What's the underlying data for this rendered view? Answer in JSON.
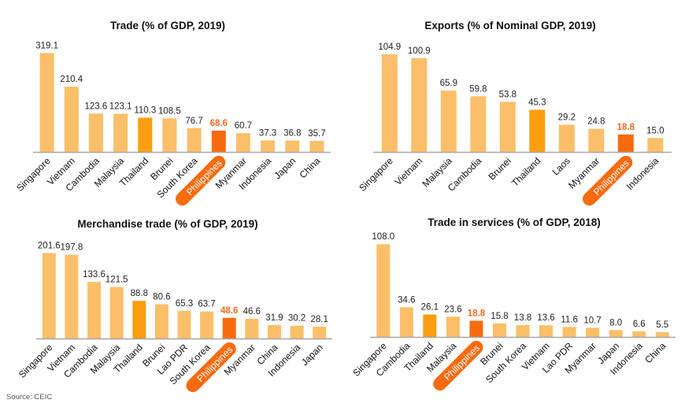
{
  "source_note": "Source: CEIC",
  "colors": {
    "default_bar": "#fbbf69",
    "thailand_bar": "#fb9e10",
    "philippines_bar": "#f86a0e",
    "philippines_label": "#f26b21",
    "axis": "#a6a6a6"
  },
  "chart_data": [
    {
      "type": "bar",
      "title": "Trade (% of GDP, 2019)",
      "xlabel": "",
      "ylabel": "",
      "categories": [
        "Singapore",
        "Vietnam",
        "Cambodia",
        "Malaysia",
        "Thailand",
        "Brunei",
        "South Korea",
        "Philippines",
        "Myanmar",
        "Indonesia",
        "Japan",
        "China"
      ],
      "values": [
        319.1,
        210.4,
        123.6,
        123.1,
        110.3,
        108.5,
        76.7,
        68.6,
        60.7,
        37.3,
        36.8,
        35.7
      ],
      "value_labels": [
        "319.1",
        "210.4",
        "123.6",
        "123.1",
        "110.3",
        "108.5",
        "76.7",
        "68.6",
        "60.7",
        "37.3",
        "36.8",
        "35.7"
      ],
      "highlight": {
        "Thailand": "thailand",
        "Philippines": "philippines"
      },
      "ylim": [
        0,
        330
      ],
      "grid": false
    },
    {
      "type": "bar",
      "title": "Exports (% of Nominal GDP, 2019)",
      "xlabel": "",
      "ylabel": "",
      "categories": [
        "Singapore",
        "Vietnam",
        "Malaysia",
        "Cambodia",
        "Brunei",
        "Thailand",
        "Laos",
        "Myanmar",
        "Philippines",
        "Indonesia"
      ],
      "values": [
        104.9,
        100.9,
        65.9,
        59.8,
        53.8,
        45.3,
        29.2,
        24.8,
        18.8,
        15.0
      ],
      "value_labels": [
        "104.9",
        "100.9",
        "65.9",
        "59.8",
        "53.8",
        "45.3",
        "29.2",
        "24.8",
        "18.8",
        "15.0"
      ],
      "highlight": {
        "Thailand": "thailand",
        "Philippines": "philippines"
      },
      "ylim": [
        0,
        110
      ],
      "grid": false
    },
    {
      "type": "bar",
      "title": "Merchandise trade (% of GDP, 2019)",
      "xlabel": "",
      "ylabel": "",
      "categories": [
        "Singapore",
        "Vietnam",
        "Cambodia",
        "Malaysia",
        "Thailand",
        "Brunei",
        "Lao PDR",
        "South Korea",
        "Philippines",
        "Myanmar",
        "China",
        "Indonesia",
        "Japan"
      ],
      "values": [
        201.6,
        197.8,
        133.6,
        121.5,
        88.8,
        80.6,
        65.3,
        63.7,
        48.6,
        46.6,
        31.9,
        30.2,
        28.1
      ],
      "value_labels": [
        "201.6",
        "197.8",
        "133.6",
        "121.5",
        "88.8",
        "80.6",
        "65.3",
        "63.7",
        "48.6",
        "46.6",
        "31.9",
        "30.2",
        "28.1"
      ],
      "highlight": {
        "Thailand": "thailand",
        "Philippines": "philippines"
      },
      "ylim": [
        0,
        210
      ],
      "grid": false
    },
    {
      "type": "bar",
      "title": "Trade in services (% of GDP, 2018)",
      "xlabel": "",
      "ylabel": "",
      "categories": [
        "Singapore",
        "Cambodia",
        "Thailand",
        "Malaysia",
        "Philippines",
        "Brunei",
        "South Korea",
        "Vietnam",
        "Lao PDR",
        "Myanmar",
        "Japan",
        "Indonesia",
        "China"
      ],
      "values": [
        108.0,
        34.6,
        26.1,
        23.6,
        18.8,
        15.8,
        13.8,
        13.6,
        11.6,
        10.7,
        8.0,
        6.6,
        5.5
      ],
      "value_labels": [
        "108.0",
        "34.6",
        "26.1",
        "23.6",
        "18.8",
        "15.8",
        "13.8",
        "13.6",
        "11.6",
        "10.7",
        "8.0",
        "6.6",
        "5.5"
      ],
      "highlight": {
        "Thailand": "thailand",
        "Philippines": "philippines"
      },
      "ylim": [
        0,
        110
      ],
      "grid": false
    }
  ]
}
